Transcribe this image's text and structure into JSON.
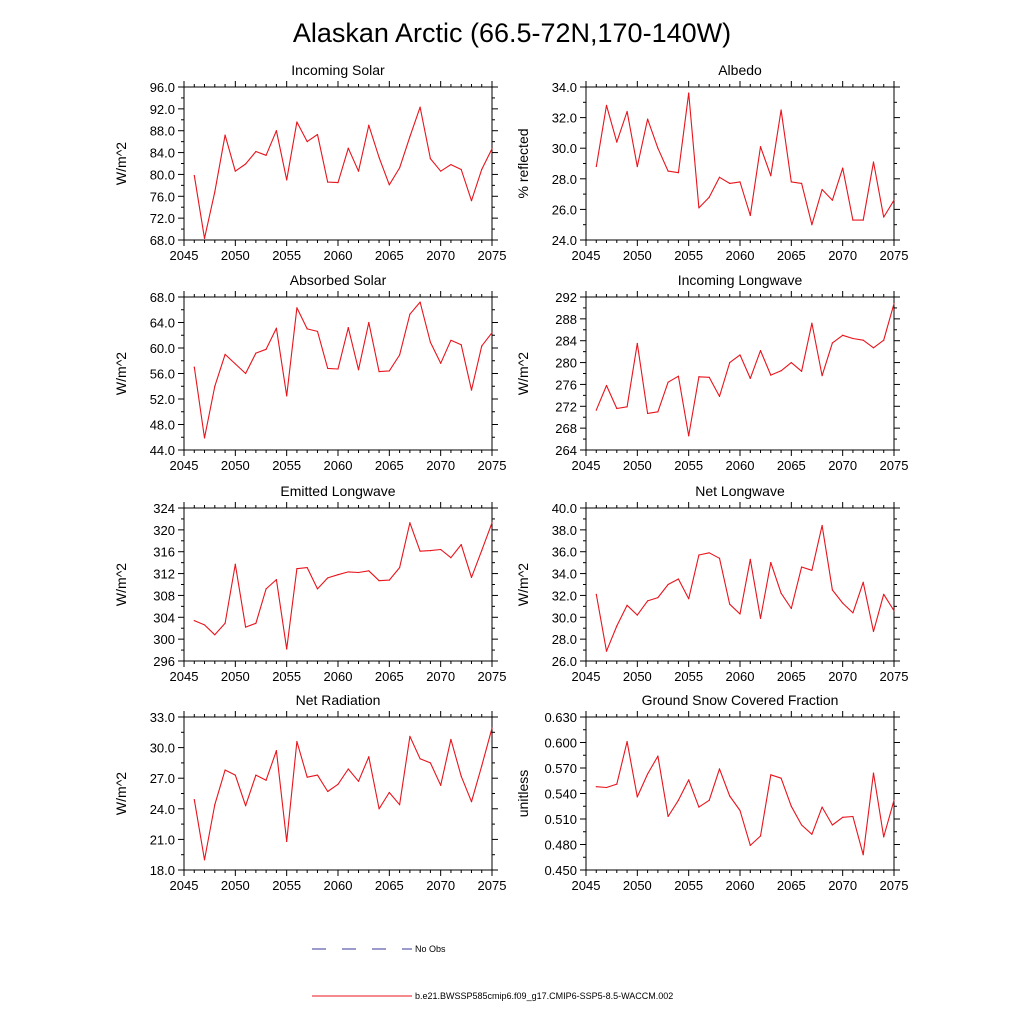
{
  "figure": {
    "title": "Alaskan Arctic (66.5-72N,170-140W)",
    "legend": {
      "obs_label": "No Obs",
      "obs_color": "#3a3a9a",
      "model_label": "b.e21.BWSSP585cmip6.f09_g17.CMIP6-SSP5-8.5-WACCM.002",
      "model_color": "#e8141c"
    }
  },
  "chart_data": [
    {
      "type": "line",
      "title": "Incoming Solar",
      "xlabel": "",
      "ylabel": "W/m^2",
      "xlim": [
        2045,
        2075
      ],
      "ylim": [
        68,
        96
      ],
      "xticks": [
        "2045",
        "2050",
        "2055",
        "2060",
        "2065",
        "2070",
        "2075"
      ],
      "yticks": [
        "68.0",
        "72.0",
        "76.0",
        "80.0",
        "84.0",
        "88.0",
        "92.0",
        "96.0"
      ],
      "x": [
        2046,
        2047,
        2048,
        2049,
        2050,
        2051,
        2052,
        2053,
        2054,
        2055,
        2056,
        2057,
        2058,
        2059,
        2060,
        2061,
        2062,
        2063,
        2064,
        2065,
        2066,
        2067,
        2068,
        2069,
        2070,
        2071,
        2072,
        2073,
        2074,
        2075
      ],
      "values": [
        79.8,
        68.3,
        76.8,
        87.2,
        80.6,
        81.9,
        84.2,
        83.5,
        88.0,
        79.0,
        89.6,
        86.0,
        87.3,
        78.6,
        78.5,
        84.8,
        80.6,
        89.0,
        83.1,
        78.1,
        81.2,
        86.9,
        92.3,
        82.9,
        80.6,
        81.8,
        80.9,
        75.2,
        80.9,
        84.7
      ],
      "series_color": "#e8141c"
    },
    {
      "type": "line",
      "title": "Albedo",
      "xlabel": "",
      "ylabel": "% reflected",
      "xlim": [
        2045,
        2075
      ],
      "ylim": [
        24,
        34
      ],
      "xticks": [
        "2045",
        "2050",
        "2055",
        "2060",
        "2065",
        "2070",
        "2075"
      ],
      "yticks": [
        "24.0",
        "26.0",
        "28.0",
        "30.0",
        "32.0",
        "34.0"
      ],
      "x": [
        2046,
        2047,
        2048,
        2049,
        2050,
        2051,
        2052,
        2053,
        2054,
        2055,
        2056,
        2057,
        2058,
        2059,
        2060,
        2061,
        2062,
        2063,
        2064,
        2065,
        2066,
        2067,
        2068,
        2069,
        2070,
        2071,
        2072,
        2073,
        2074,
        2075
      ],
      "values": [
        28.8,
        32.8,
        30.4,
        32.4,
        28.8,
        31.9,
        30.0,
        28.5,
        28.4,
        33.6,
        26.1,
        26.8,
        28.1,
        27.7,
        27.8,
        25.6,
        30.1,
        28.2,
        32.5,
        27.8,
        27.7,
        25.0,
        27.3,
        26.6,
        28.7,
        25.3,
        25.3,
        29.1,
        25.5,
        26.6
      ],
      "series_color": "#e8141c"
    },
    {
      "type": "line",
      "title": "Absorbed Solar",
      "xlabel": "",
      "ylabel": "W/m^2",
      "xlim": [
        2045,
        2075
      ],
      "ylim": [
        44,
        68
      ],
      "xticks": [
        "2045",
        "2050",
        "2055",
        "2060",
        "2065",
        "2070",
        "2075"
      ],
      "yticks": [
        "44.0",
        "48.0",
        "52.0",
        "56.0",
        "60.0",
        "64.0",
        "68.0"
      ],
      "x": [
        2046,
        2047,
        2048,
        2049,
        2050,
        2051,
        2052,
        2053,
        2054,
        2055,
        2056,
        2057,
        2058,
        2059,
        2060,
        2061,
        2062,
        2063,
        2064,
        2065,
        2066,
        2067,
        2068,
        2069,
        2070,
        2071,
        2072,
        2073,
        2074,
        2075
      ],
      "values": [
        57.0,
        45.9,
        54.0,
        59.0,
        57.5,
        56.0,
        59.2,
        59.8,
        63.1,
        52.5,
        66.3,
        63.0,
        62.6,
        56.8,
        56.7,
        63.2,
        56.6,
        64.0,
        56.3,
        56.4,
        58.9,
        65.3,
        67.2,
        60.9,
        57.6,
        61.2,
        60.5,
        53.4,
        60.3,
        62.4
      ],
      "series_color": "#e8141c"
    },
    {
      "type": "line",
      "title": "Incoming Longwave",
      "xlabel": "",
      "ylabel": "W/m^2",
      "xlim": [
        2045,
        2075
      ],
      "ylim": [
        264,
        292
      ],
      "xticks": [
        "2045",
        "2050",
        "2055",
        "2060",
        "2065",
        "2070",
        "2075"
      ],
      "yticks": [
        "264",
        "268",
        "272",
        "276",
        "280",
        "284",
        "288",
        "292"
      ],
      "x": [
        2046,
        2047,
        2048,
        2049,
        2050,
        2051,
        2052,
        2053,
        2054,
        2055,
        2056,
        2057,
        2058,
        2059,
        2060,
        2061,
        2062,
        2063,
        2064,
        2065,
        2066,
        2067,
        2068,
        2069,
        2070,
        2071,
        2072,
        2073,
        2074,
        2075
      ],
      "values": [
        271.3,
        275.8,
        271.6,
        271.9,
        283.5,
        270.7,
        271.0,
        276.4,
        277.5,
        266.6,
        277.4,
        277.3,
        273.8,
        280.0,
        281.4,
        277.1,
        282.2,
        277.7,
        278.5,
        280.0,
        278.4,
        287.2,
        277.6,
        283.6,
        285.0,
        284.4,
        284.1,
        282.7,
        284.1,
        290.8
      ],
      "series_color": "#e8141c"
    },
    {
      "type": "line",
      "title": "Emitted Longwave",
      "xlabel": "",
      "ylabel": "W/m^2",
      "xlim": [
        2045,
        2075
      ],
      "ylim": [
        296,
        324
      ],
      "xticks": [
        "2045",
        "2050",
        "2055",
        "2060",
        "2065",
        "2070",
        "2075"
      ],
      "yticks": [
        "296",
        "300",
        "304",
        "308",
        "312",
        "316",
        "320",
        "324"
      ],
      "x": [
        2046,
        2047,
        2048,
        2049,
        2050,
        2051,
        2052,
        2053,
        2054,
        2055,
        2056,
        2057,
        2058,
        2059,
        2060,
        2061,
        2062,
        2063,
        2064,
        2065,
        2066,
        2067,
        2068,
        2069,
        2070,
        2071,
        2072,
        2073,
        2074,
        2075
      ],
      "values": [
        303.4,
        302.6,
        300.8,
        302.9,
        313.7,
        302.2,
        302.9,
        309.2,
        310.9,
        298.2,
        312.9,
        313.1,
        309.2,
        311.2,
        311.8,
        312.3,
        312.2,
        312.5,
        310.7,
        310.8,
        313.1,
        321.3,
        316.1,
        316.2,
        316.4,
        314.9,
        317.3,
        311.3,
        316.2,
        321.3
      ],
      "series_color": "#e8141c"
    },
    {
      "type": "line",
      "title": "Net Longwave",
      "xlabel": "",
      "ylabel": "W/m^2",
      "xlim": [
        2045,
        2075
      ],
      "ylim": [
        26,
        40
      ],
      "xticks": [
        "2045",
        "2050",
        "2055",
        "2060",
        "2065",
        "2070",
        "2075"
      ],
      "yticks": [
        "26.0",
        "28.0",
        "30.0",
        "32.0",
        "34.0",
        "36.0",
        "38.0",
        "40.0"
      ],
      "x": [
        2046,
        2047,
        2048,
        2049,
        2050,
        2051,
        2052,
        2053,
        2054,
        2055,
        2056,
        2057,
        2058,
        2059,
        2060,
        2061,
        2062,
        2063,
        2064,
        2065,
        2066,
        2067,
        2068,
        2069,
        2070,
        2071,
        2072,
        2073,
        2074,
        2075
      ],
      "values": [
        32.1,
        26.9,
        29.2,
        31.1,
        30.2,
        31.5,
        31.8,
        33.0,
        33.5,
        31.7,
        35.7,
        35.9,
        35.4,
        31.2,
        30.3,
        35.3,
        29.9,
        35.0,
        32.2,
        30.8,
        34.6,
        34.3,
        38.4,
        32.5,
        31.3,
        30.4,
        33.2,
        28.7,
        32.1,
        30.6
      ],
      "series_color": "#e8141c"
    },
    {
      "type": "line",
      "title": "Net Radiation",
      "xlabel": "",
      "ylabel": "W/m^2",
      "xlim": [
        2045,
        2075
      ],
      "ylim": [
        18,
        33
      ],
      "xticks": [
        "2045",
        "2050",
        "2055",
        "2060",
        "2065",
        "2070",
        "2075"
      ],
      "yticks": [
        "18.0",
        "21.0",
        "24.0",
        "27.0",
        "30.0",
        "33.0"
      ],
      "x": [
        2046,
        2047,
        2048,
        2049,
        2050,
        2051,
        2052,
        2053,
        2054,
        2055,
        2056,
        2057,
        2058,
        2059,
        2060,
        2061,
        2062,
        2063,
        2064,
        2065,
        2066,
        2067,
        2068,
        2069,
        2070,
        2071,
        2072,
        2073,
        2074,
        2075
      ],
      "values": [
        24.9,
        19.0,
        24.4,
        27.8,
        27.3,
        24.3,
        27.3,
        26.8,
        29.7,
        20.8,
        30.6,
        27.1,
        27.3,
        25.7,
        26.4,
        27.9,
        26.7,
        29.1,
        24.0,
        25.6,
        24.4,
        31.1,
        28.9,
        28.5,
        26.3,
        30.8,
        27.2,
        24.7,
        28.2,
        31.9
      ],
      "series_color": "#e8141c"
    },
    {
      "type": "line",
      "title": "Ground Snow Covered Fraction",
      "xlabel": "",
      "ylabel": "unitless",
      "xlim": [
        2045,
        2075
      ],
      "ylim": [
        0.45,
        0.63
      ],
      "xticks": [
        "2045",
        "2050",
        "2055",
        "2060",
        "2065",
        "2070",
        "2075"
      ],
      "yticks": [
        "0.450",
        "0.480",
        "0.510",
        "0.540",
        "0.570",
        "0.600",
        "0.630"
      ],
      "x": [
        2046,
        2047,
        2048,
        2049,
        2050,
        2051,
        2052,
        2053,
        2054,
        2055,
        2056,
        2057,
        2058,
        2059,
        2060,
        2061,
        2062,
        2063,
        2064,
        2065,
        2066,
        2067,
        2068,
        2069,
        2070,
        2071,
        2072,
        2073,
        2074,
        2075
      ],
      "values": [
        0.548,
        0.547,
        0.551,
        0.601,
        0.536,
        0.563,
        0.584,
        0.513,
        0.532,
        0.556,
        0.524,
        0.532,
        0.569,
        0.537,
        0.52,
        0.479,
        0.49,
        0.562,
        0.558,
        0.525,
        0.503,
        0.492,
        0.524,
        0.503,
        0.512,
        0.513,
        0.468,
        0.564,
        0.489,
        0.532
      ],
      "series_color": "#e8141c"
    }
  ]
}
